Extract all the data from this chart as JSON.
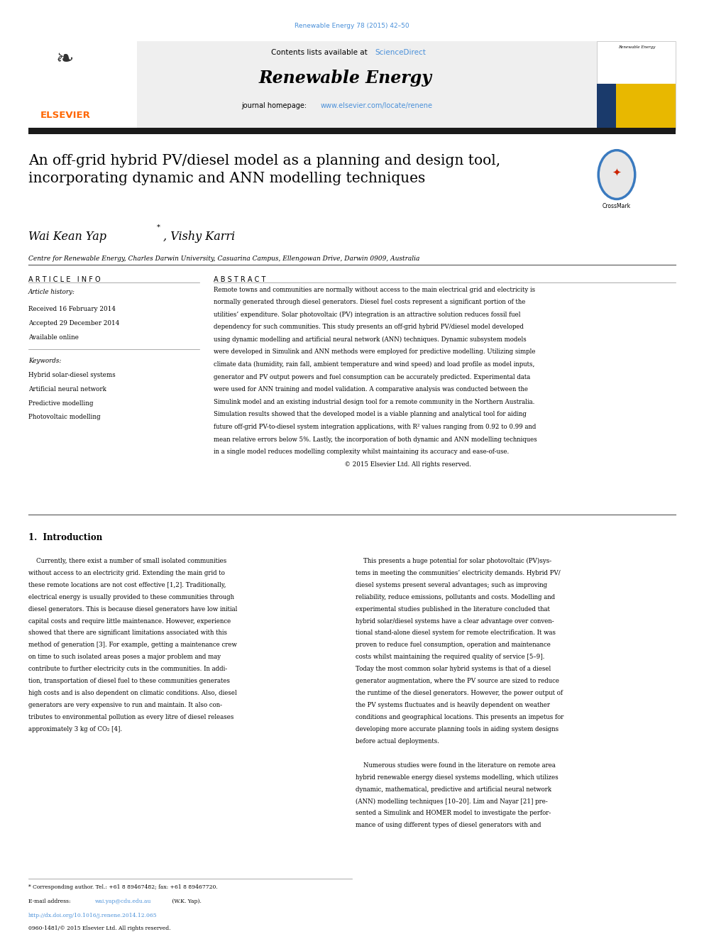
{
  "page_width": 9.92,
  "page_height": 13.23,
  "bg_color": "#ffffff",
  "journal_ref": "Renewable Energy 78 (2015) 42–50",
  "journal_ref_color": "#4a90d9",
  "header_bg": "#f0f0f0",
  "header_text": "Contents lists available at ",
  "sciencedirect_text": "ScienceDirect",
  "sciencedirect_color": "#4a90d9",
  "journal_name": "Renewable Energy",
  "journal_homepage_prefix": "journal homepage: ",
  "journal_url": "www.elsevier.com/locate/renene",
  "journal_url_color": "#4a90d9",
  "article_title": "An off-grid hybrid PV/diesel model as a planning and design tool,\nincorporating dynamic and ANN modelling techniques",
  "authors": "Wai Kean Yap*, Vishy Karri",
  "affiliation": "Centre for Renewable Energy, Charles Darwin University, Casuarina Campus, Ellengowan Drive, Darwin 0909, Australia",
  "article_info_header": "A R T I C L E   I N F O",
  "abstract_header": "A B S T R A C T",
  "article_history_label": "Article history:",
  "received": "Received 16 February 2014",
  "accepted": "Accepted 29 December 2014",
  "available": "Available online",
  "keywords_label": "Keywords:",
  "keywords": [
    "Hybrid solar-diesel systems",
    "Artificial neural network",
    "Predictive modelling",
    "Photovoltaic modelling"
  ],
  "elsevier_color": "#FF6600",
  "dark_bar_color": "#1a1a1a",
  "footer_text1": "* Corresponding author. Tel.: +61 8 89467482; fax: +61 8 89467720.",
  "footer_email_prefix": "E-mail address: ",
  "footer_email": "wai.yap@cdu.edu.au",
  "footer_email_suffix": " (W.K. Yap).",
  "footer_doi": "http://dx.doi.org/10.1016/j.renene.2014.12.065",
  "footer_issn": "0960-1481/© 2015 Elsevier Ltd. All rights reserved.",
  "intro_header": "1.  Introduction",
  "abstract_lines": [
    "Remote towns and communities are normally without access to the main electrical grid and electricity is",
    "normally generated through diesel generators. Diesel fuel costs represent a significant portion of the",
    "utilities’ expenditure. Solar photovoltaic (PV) integration is an attractive solution reduces fossil fuel",
    "dependency for such communities. This study presents an off-grid hybrid PV/diesel model developed",
    "using dynamic modelling and artificial neural network (ANN) techniques. Dynamic subsystem models",
    "were developed in Simulink and ANN methods were employed for predictive modelling. Utilizing simple",
    "climate data (humidity, rain fall, ambient temperature and wind speed) and load profile as model inputs,",
    "generator and PV output powers and fuel consumption can be accurately predicted. Experimental data",
    "were used for ANN training and model validation. A comparative analysis was conducted between the",
    "Simulink model and an existing industrial design tool for a remote community in the Northern Australia.",
    "Simulation results showed that the developed model is a viable planning and analytical tool for aiding",
    "future off-grid PV-to-diesel system integration applications, with R² values ranging from 0.92 to 0.99 and",
    "mean relative errors below 5%. Lastly, the incorporation of both dynamic and ANN modelling techniques",
    "in a single model reduces modelling complexity whilst maintaining its accuracy and ease-of-use.",
    "                                                                   © 2015 Elsevier Ltd. All rights reserved."
  ],
  "intro_col1_lines": [
    "    Currently, there exist a number of small isolated communities",
    "without access to an electricity grid. Extending the main grid to",
    "these remote locations are not cost effective [1,2]. Traditionally,",
    "electrical energy is usually provided to these communities through",
    "diesel generators. This is because diesel generators have low initial",
    "capital costs and require little maintenance. However, experience",
    "showed that there are significant limitations associated with this",
    "method of generation [3]. For example, getting a maintenance crew",
    "on time to such isolated areas poses a major problem and may",
    "contribute to further electricity cuts in the communities. In addi-",
    "tion, transportation of diesel fuel to these communities generates",
    "high costs and is also dependent on climatic conditions. Also, diesel",
    "generators are very expensive to run and maintain. It also con-",
    "tributes to environmental pollution as every litre of diesel releases",
    "approximately 3 kg of CO₂ [4]."
  ],
  "intro_col2_lines": [
    "    This presents a huge potential for solar photovoltaic (PV)sys-",
    "tems in meeting the communities’ electricity demands. Hybrid PV/",
    "diesel systems present several advantages; such as improving",
    "reliability, reduce emissions, pollutants and costs. Modelling and",
    "experimental studies published in the literature concluded that",
    "hybrid solar/diesel systems have a clear advantage over conven-",
    "tional stand-alone diesel system for remote electrification. It was",
    "proven to reduce fuel consumption, operation and maintenance",
    "costs whilst maintaining the required quality of service [5–9].",
    "Today the most common solar hybrid systems is that of a diesel",
    "generator augmentation, where the PV source are sized to reduce",
    "the runtime of the diesel generators. However, the power output of",
    "the PV systems fluctuates and is heavily dependent on weather",
    "conditions and geographical locations. This presents an impetus for",
    "developing more accurate planning tools in aiding system designs",
    "before actual deployments.",
    "",
    "    Numerous studies were found in the literature on remote area",
    "hybrid renewable energy diesel systems modelling, which utilizes",
    "dynamic, mathematical, predictive and artificial neural network",
    "(ANN) modelling techniques [10–20]. Lim and Nayar [21] pre-",
    "sented a Simulink and HOMER model to investigate the perfor-",
    "mance of using different types of diesel generators with and"
  ]
}
